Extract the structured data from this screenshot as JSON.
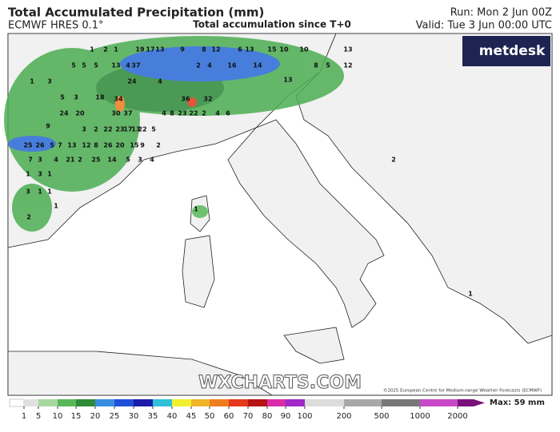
{
  "header": {
    "title": "Total Accumulated Precipitation (mm)",
    "model": "ECMWF HRES 0.1°",
    "subtitle": "Total accumulation since T+0",
    "run": "Run: Mon 2 Jun 00Z",
    "valid": "Valid: Tue 3 Jun 00:00 UTC"
  },
  "logo": "metdesk",
  "watermark": "WXCHARTS.COM",
  "copyright": "©2025 European Centre for Medium-range Weather Forecasts (ECMWF)",
  "map_labels": [
    1,
    2,
    1,
    5,
    19,
    17,
    13,
    9,
    8,
    12,
    15,
    10,
    8,
    5,
    5,
    5,
    13,
    4,
    2,
    4,
    16,
    6,
    10,
    13,
    12,
    14,
    13,
    3,
    37,
    1,
    24,
    34,
    36,
    22,
    2,
    4,
    6,
    9,
    24,
    20,
    30,
    37,
    32,
    4,
    8,
    23,
    22,
    5,
    3,
    2,
    3,
    5,
    13,
    18,
    22,
    23,
    17,
    13,
    4,
    25,
    26,
    5,
    7,
    13,
    12,
    8,
    26,
    20,
    15,
    9,
    2,
    7,
    3,
    4,
    2,
    21,
    25,
    14,
    5,
    3,
    4,
    1,
    3,
    1,
    3,
    1,
    1,
    1,
    2,
    2,
    1,
    1
  ],
  "legend": {
    "ticks": [
      1,
      5,
      10,
      15,
      20,
      25,
      30,
      35,
      40,
      45,
      50,
      60,
      70,
      80,
      90,
      100,
      200,
      500,
      1000,
      2000
    ],
    "colors": [
      "#e0e0e0",
      "#a8d8a0",
      "#58b858",
      "#2e8b3a",
      "#3a8ee0",
      "#2050d8",
      "#1c1ca8",
      "#30c0d8",
      "#f0f030",
      "#f0b428",
      "#f07c20",
      "#e43a1c",
      "#b41414",
      "#d82ca8",
      "#a028c8",
      "#dcdcdc",
      "#a8a8a8",
      "#787878",
      "#c848c8",
      "#7a107a"
    ],
    "max": "Max: 59 mm"
  }
}
